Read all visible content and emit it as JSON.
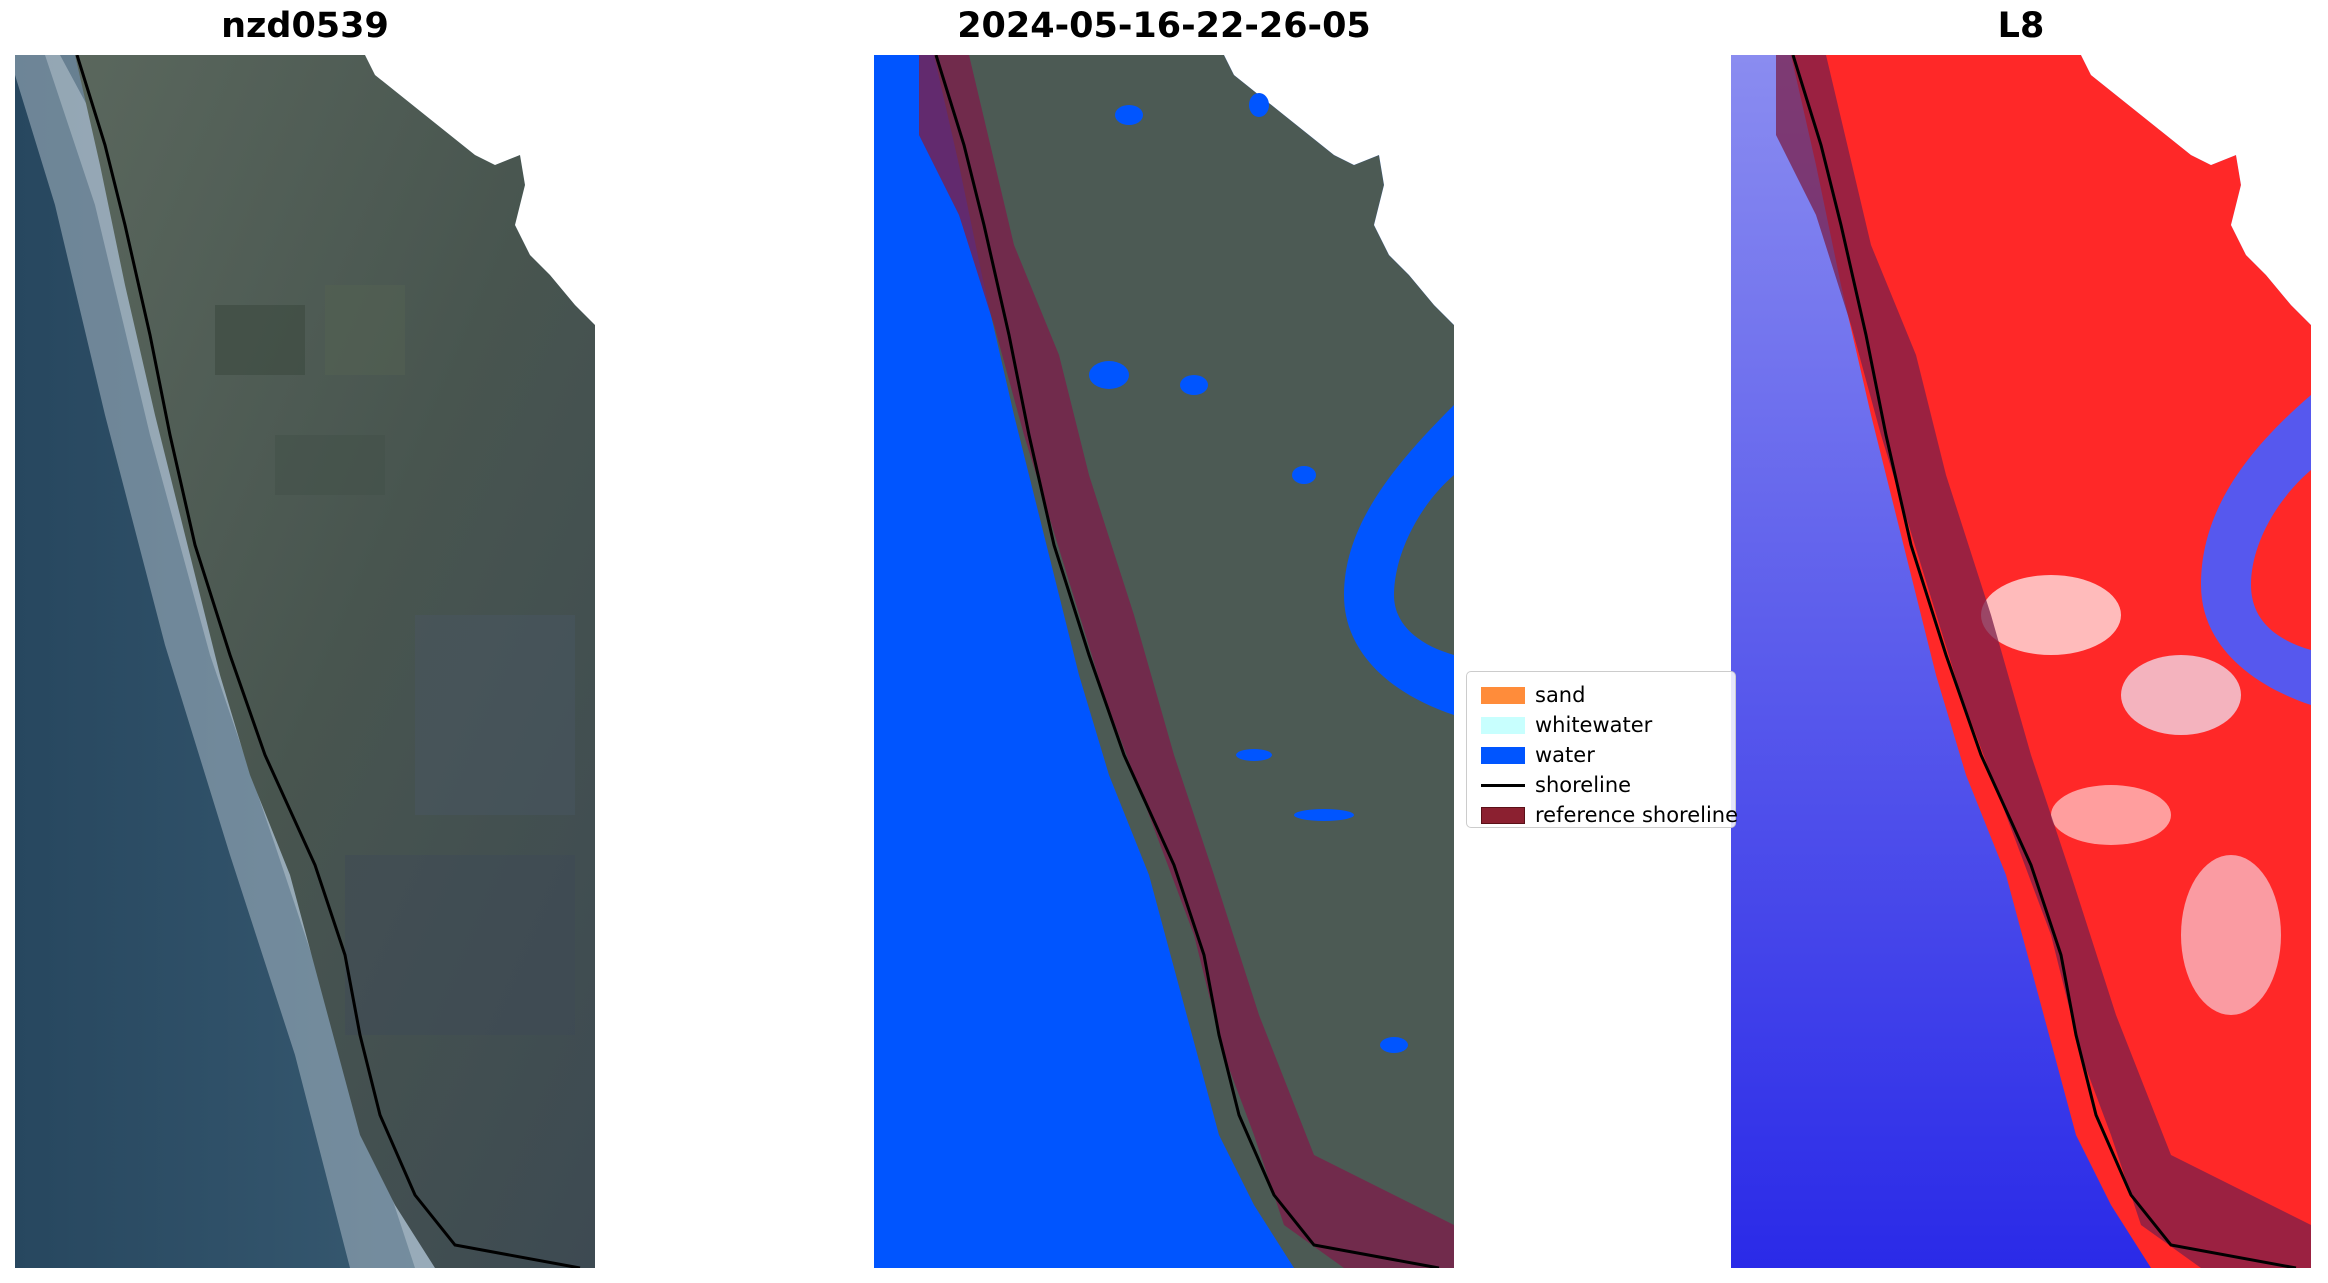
{
  "panels": [
    {
      "title": "nzd0539",
      "view": "RGB image"
    },
    {
      "title": "2024-05-16-22-26-05",
      "view": "classified image"
    },
    {
      "title": "L8",
      "view": "MNDWI"
    }
  ],
  "legend": {
    "items": [
      {
        "label": "sand",
        "color": "#ff8c3a",
        "kind": "patch"
      },
      {
        "label": "whitewater",
        "color": "#c8fffe",
        "kind": "patch"
      },
      {
        "label": "water",
        "color": "#0055ff",
        "kind": "patch"
      },
      {
        "label": "shoreline",
        "color": "#000000",
        "kind": "line"
      },
      {
        "label": "reference shoreline",
        "color": "#8b2030",
        "kind": "patch"
      }
    ]
  },
  "colors": {
    "land_rgb": "#4c5a52",
    "sea_rgb": "#30506a",
    "water_class": "#0055ff",
    "reference_band": "#7a1f4a",
    "mndwi_land": "#ff2020",
    "mndwi_water": "#3b3bef"
  }
}
